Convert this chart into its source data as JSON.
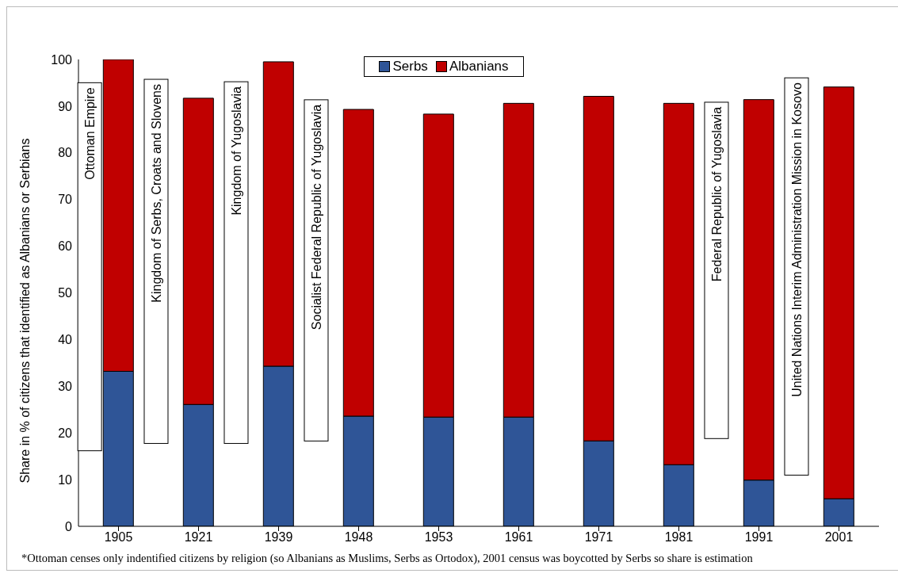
{
  "chart_data": {
    "type": "bar",
    "stacked": true,
    "ylabel": "Share in % of citizens that identified as Albanians or Serbians",
    "categories": [
      "1905",
      "1921",
      "1939",
      "1948",
      "1953",
      "1961",
      "1971",
      "1981",
      "1991",
      "2001"
    ],
    "series": [
      {
        "name": "Serbs",
        "color": "#2f5597",
        "values": [
          33.2,
          26.1,
          34.3,
          23.6,
          23.4,
          23.4,
          18.3,
          13.2,
          9.9,
          5.9
        ]
      },
      {
        "name": "Albanians",
        "color": "#c00000",
        "values": [
          66.8,
          65.6,
          65.2,
          65.7,
          64.9,
          67.2,
          73.8,
          77.4,
          81.5,
          88.2
        ]
      }
    ],
    "ylim": [
      0,
      100
    ],
    "yticks": [
      0,
      10,
      20,
      30,
      40,
      50,
      60,
      70,
      80,
      90,
      100
    ],
    "grid": false,
    "legend": "top",
    "annotations": [
      "Ottoman Empire",
      "Kingdom of Serbs, Croats and Slovens",
      "Kingdom of Yugoslavia",
      "Socialist Federal Republic of Yugoslavia",
      "Federal Republic of Yugoslavia",
      "United Nations Interim Administration Mission in Kosovo",
      "*Ottoman censes only indentified citizens by religion (so Albanians as Muslims, Serbs as Ortodox), 2001 census was boycotted by Serbs so share is estimation"
    ]
  }
}
